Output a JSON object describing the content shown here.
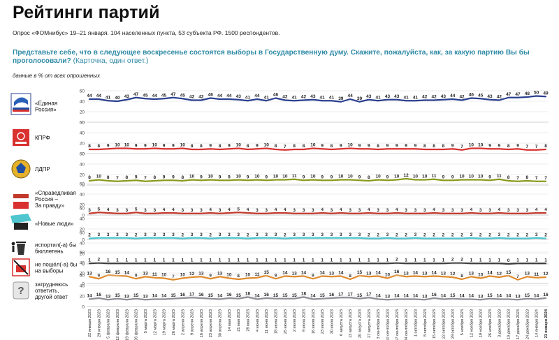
{
  "header": {
    "title": "Рейтинги партий",
    "subtitle": "Опрос «ФОМнибус» 19–21 января. 104 населенных пункта, 53 субъекта РФ. 1500 респондентов.",
    "question": "Представьте себе, что в следующее воскресенье состоятся выборы в Государственную думу. Скажите, пожалуйста, как, за какую партию Вы бы проголосовали?",
    "question_note": "(Карточка, один ответ.)",
    "units": "данные в % от всех опрошенных"
  },
  "chart_data": {
    "type": "line",
    "ylim": [
      0,
      60
    ],
    "yticks": [
      0,
      20,
      40,
      60
    ],
    "x": [
      "22 января 2023",
      "29 января 2023",
      "5 февраля 2023",
      "12 февраля 2023",
      "19 февраля 2023",
      "26 февраля 2023",
      "5 марта 2023",
      "12 марта 2023",
      "19 марта 2023",
      "26 марта 2023",
      "2 апреля 2023",
      "9 апреля 2023",
      "16 апреля 2023",
      "23 апреля 2023",
      "30 апреля 2023",
      "14 мая 2023",
      "21 мая 2023",
      "28 мая 2023",
      "4 июня 2023",
      "11 июня 2023",
      "18 июня 2023",
      "25 июня 2023",
      "2 июля 2023",
      "9 июля 2023",
      "16 июля 2023",
      "23 июля 2023",
      "30 июля 2023",
      "6 августа 2023",
      "13 августа 2023",
      "20 августа 2023",
      "27 августа 2023",
      "3 сентября 2023",
      "10 сентября 2023",
      "17 сентября 2023",
      "24 сентября 2023",
      "1 октября 2023",
      "8 октября 2023",
      "15 октября 2023",
      "22 октября 2023",
      "29 октября 2023",
      "5 ноября 2023",
      "12 ноября 2023",
      "19 ноября 2023",
      "26 ноября 2023",
      "3 декабря 2023",
      "10 декабря 2023",
      "17 декабря 2023",
      "24 декабря 2023",
      "14 января 2024",
      "21 января 2024"
    ],
    "series": [
      {
        "name": "«Единая Россия»",
        "color": "#2a3f8f",
        "icon": "united-russia-logo",
        "values": [
          44,
          44,
          41,
          40,
          43,
          47,
          45,
          44,
          45,
          47,
          45,
          42,
          42,
          46,
          44,
          44,
          43,
          41,
          44,
          41,
          46,
          42,
          41,
          42,
          43,
          41,
          41,
          39,
          44,
          39,
          43,
          41,
          43,
          43,
          41,
          41,
          42,
          42,
          43,
          44,
          42,
          46,
          45,
          43,
          42,
          47,
          47,
          48,
          50,
          49
        ]
      },
      {
        "name": "КПРФ",
        "color": "#d8312f",
        "icon": "kprf-logo",
        "values": [
          8,
          8,
          9,
          10,
          10,
          9,
          9,
          10,
          9,
          9,
          10,
          8,
          8,
          9,
          8,
          9,
          10,
          8,
          9,
          10,
          8,
          7,
          8,
          8,
          10,
          9,
          8,
          9,
          10,
          9,
          9,
          8,
          9,
          9,
          9,
          9,
          8,
          8,
          8,
          9,
          7,
          10,
          10,
          9,
          9,
          8,
          9,
          7,
          7,
          8
        ]
      },
      {
        "name": "ЛДПР",
        "color": "#8a9a1e",
        "icon": "ldpr-logo",
        "values": [
          8,
          10,
          8,
          7,
          8,
          9,
          7,
          8,
          9,
          9,
          8,
          10,
          9,
          10,
          9,
          9,
          10,
          9,
          10,
          9,
          10,
          10,
          11,
          9,
          10,
          9,
          9,
          10,
          10,
          9,
          8,
          10,
          9,
          10,
          12,
          10,
          10,
          11,
          9,
          9,
          10,
          10,
          10,
          9,
          11,
          8,
          7,
          8,
          7,
          7
        ]
      },
      {
        "name": "«Справедливая Россия – За правду»",
        "color": "#c0392b",
        "icon": "sr-logo",
        "values": [
          3,
          5,
          4,
          3,
          3,
          5,
          3,
          3,
          4,
          4,
          3,
          3,
          3,
          4,
          3,
          4,
          5,
          4,
          3,
          3,
          4,
          4,
          3,
          3,
          3,
          4,
          3,
          4,
          3,
          3,
          4,
          3,
          3,
          4,
          3,
          3,
          3,
          4,
          3,
          3,
          3,
          4,
          3,
          3,
          4,
          3,
          3,
          3,
          4,
          4
        ]
      },
      {
        "name": "«Новые люди»",
        "color": "#4fc5cf",
        "icon": "new-people-logo",
        "values": [
          2,
          3,
          3,
          3,
          3,
          2,
          3,
          3,
          3,
          3,
          2,
          3,
          3,
          2,
          3,
          3,
          3,
          2,
          3,
          3,
          3,
          2,
          3,
          3,
          3,
          3,
          3,
          3,
          3,
          3,
          2,
          2,
          3,
          2,
          2,
          3,
          2,
          2,
          2,
          2,
          2,
          3,
          2,
          2,
          3,
          2,
          2,
          2,
          3,
          2
        ]
      },
      {
        "name": "испортил(-а) бы бюллетень",
        "color": "#3a3a3a",
        "icon": "trash-icon",
        "values": [
          1,
          2,
          1,
          1,
          1,
          1,
          1,
          1,
          1,
          1,
          1,
          1,
          1,
          1,
          1,
          1,
          1,
          1,
          1,
          1,
          1,
          1,
          1,
          1,
          1,
          1,
          1,
          1,
          1,
          1,
          1,
          1,
          1,
          2,
          1,
          1,
          1,
          1,
          1,
          2,
          2,
          1,
          1,
          1,
          1,
          0,
          1,
          1,
          1,
          1
        ]
      },
      {
        "name": "не пошёл(-а) бы на выборы",
        "color": "#e08a2c",
        "icon": "no-ballot-icon",
        "values": [
          13,
          9,
          16,
          15,
          14,
          9,
          13,
          11,
          10,
          7,
          10,
          12,
          13,
          9,
          13,
          10,
          8,
          10,
          11,
          15,
          9,
          14,
          13,
          14,
          9,
          14,
          13,
          14,
          8,
          15,
          13,
          14,
          10,
          16,
          13,
          14,
          13,
          14,
          13,
          12,
          8,
          13,
          10,
          14,
          12,
          15,
          7,
          13,
          11,
          12
        ]
      },
      {
        "name": "затрудняюсь ответить, другой ответ",
        "color": "#8e8e96",
        "icon": "question-icon",
        "values": [
          14,
          16,
          13,
          15,
          13,
          15,
          13,
          14,
          14,
          15,
          16,
          17,
          16,
          15,
          14,
          16,
          15,
          18,
          14,
          16,
          15,
          15,
          15,
          18,
          14,
          15,
          16,
          17,
          17,
          15,
          17,
          14,
          13,
          14,
          14,
          14,
          13,
          16,
          14,
          15,
          14,
          14,
          13,
          15,
          14,
          14,
          13,
          15,
          14,
          16
        ]
      }
    ]
  }
}
